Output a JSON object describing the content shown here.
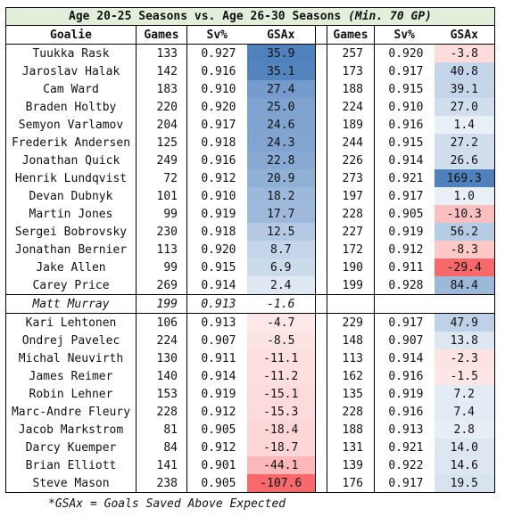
{
  "title": {
    "main": "Age 20-25 Seasons vs. Age 26-30 Seasons ",
    "note": "(Min. 70 GP)"
  },
  "headers": {
    "goalie": "Goalie",
    "games1": "Games",
    "sv1": "Sv%",
    "gsax1": "GSAx",
    "games2": "Games",
    "sv2": "Sv%",
    "gsax2": "GSAx"
  },
  "colors": {
    "positive_max": "#4f81bd",
    "negative_max": "#f8696b",
    "title_bg": "#e2efda"
  },
  "rows": [
    {
      "name": "Tuukka Rask",
      "g1": "133",
      "sv1": "0.927",
      "gsax1": "35.9",
      "g2": "257",
      "sv2": "0.920",
      "gsax2": "-3.8"
    },
    {
      "name": "Jaroslav Halak",
      "g1": "142",
      "sv1": "0.916",
      "gsax1": "35.1",
      "g2": "173",
      "sv2": "0.917",
      "gsax2": "40.8"
    },
    {
      "name": "Cam Ward",
      "g1": "183",
      "sv1": "0.910",
      "gsax1": "27.4",
      "g2": "188",
      "sv2": "0.915",
      "gsax2": "39.1"
    },
    {
      "name": "Braden Holtby",
      "g1": "220",
      "sv1": "0.920",
      "gsax1": "25.0",
      "g2": "224",
      "sv2": "0.910",
      "gsax2": "27.0"
    },
    {
      "name": "Semyon Varlamov",
      "g1": "204",
      "sv1": "0.917",
      "gsax1": "24.6",
      "g2": "189",
      "sv2": "0.916",
      "gsax2": "1.4"
    },
    {
      "name": "Frederik Andersen",
      "g1": "125",
      "sv1": "0.918",
      "gsax1": "24.3",
      "g2": "244",
      "sv2": "0.915",
      "gsax2": "27.2"
    },
    {
      "name": "Jonathan Quick",
      "g1": "249",
      "sv1": "0.916",
      "gsax1": "22.8",
      "g2": "226",
      "sv2": "0.914",
      "gsax2": "26.6"
    },
    {
      "name": "Henrik Lundqvist",
      "g1": "72",
      "sv1": "0.912",
      "gsax1": "20.9",
      "g2": "273",
      "sv2": "0.921",
      "gsax2": "169.3"
    },
    {
      "name": "Devan Dubnyk",
      "g1": "101",
      "sv1": "0.910",
      "gsax1": "18.2",
      "g2": "197",
      "sv2": "0.917",
      "gsax2": "1.0"
    },
    {
      "name": "Martin Jones",
      "g1": "99",
      "sv1": "0.919",
      "gsax1": "17.7",
      "g2": "228",
      "sv2": "0.905",
      "gsax2": "-10.3"
    },
    {
      "name": "Sergei Bobrovsky",
      "g1": "230",
      "sv1": "0.918",
      "gsax1": "12.5",
      "g2": "227",
      "sv2": "0.919",
      "gsax2": "56.2"
    },
    {
      "name": "Jonathan Bernier",
      "g1": "113",
      "sv1": "0.920",
      "gsax1": "8.7",
      "g2": "172",
      "sv2": "0.912",
      "gsax2": "-8.3"
    },
    {
      "name": "Jake Allen",
      "g1": "99",
      "sv1": "0.915",
      "gsax1": "6.9",
      "g2": "190",
      "sv2": "0.911",
      "gsax2": "-29.4"
    },
    {
      "name": "Carey Price",
      "g1": "269",
      "sv1": "0.914",
      "gsax1": "2.4",
      "g2": "199",
      "sv2": "0.928",
      "gsax2": "84.4"
    },
    {
      "name": "Matt Murray",
      "g1": "199",
      "sv1": "0.913",
      "gsax1": "-1.6",
      "g2": "",
      "sv2": "",
      "gsax2": ""
    },
    {
      "name": "Kari Lehtonen",
      "g1": "106",
      "sv1": "0.913",
      "gsax1": "-4.7",
      "g2": "229",
      "sv2": "0.917",
      "gsax2": "47.9"
    },
    {
      "name": "Ondrej Pavelec",
      "g1": "224",
      "sv1": "0.907",
      "gsax1": "-8.5",
      "g2": "148",
      "sv2": "0.907",
      "gsax2": "13.8"
    },
    {
      "name": "Michal Neuvirth",
      "g1": "130",
      "sv1": "0.911",
      "gsax1": "-11.1",
      "g2": "113",
      "sv2": "0.914",
      "gsax2": "-2.3"
    },
    {
      "name": "James Reimer",
      "g1": "140",
      "sv1": "0.914",
      "gsax1": "-11.2",
      "g2": "162",
      "sv2": "0.916",
      "gsax2": "-1.5"
    },
    {
      "name": "Robin Lehner",
      "g1": "153",
      "sv1": "0.919",
      "gsax1": "-15.1",
      "g2": "135",
      "sv2": "0.919",
      "gsax2": "7.2"
    },
    {
      "name": "Marc-Andre Fleury",
      "g1": "228",
      "sv1": "0.912",
      "gsax1": "-15.3",
      "g2": "228",
      "sv2": "0.916",
      "gsax2": "7.4"
    },
    {
      "name": "Jacob Markstrom",
      "g1": "81",
      "sv1": "0.905",
      "gsax1": "-18.4",
      "g2": "188",
      "sv2": "0.913",
      "gsax2": "2.8"
    },
    {
      "name": "Darcy Kuemper",
      "g1": "84",
      "sv1": "0.912",
      "gsax1": "-18.7",
      "g2": "131",
      "sv2": "0.921",
      "gsax2": "14.0"
    },
    {
      "name": "Brian Elliott",
      "g1": "141",
      "sv1": "0.901",
      "gsax1": "-44.1",
      "g2": "139",
      "sv2": "0.922",
      "gsax2": "14.6"
    },
    {
      "name": "Steve Mason",
      "g1": "238",
      "sv1": "0.905",
      "gsax1": "-107.6",
      "g2": "176",
      "sv2": "0.917",
      "gsax2": "19.5"
    }
  ],
  "footnote": "*GSAx = Goals Saved Above Expected"
}
